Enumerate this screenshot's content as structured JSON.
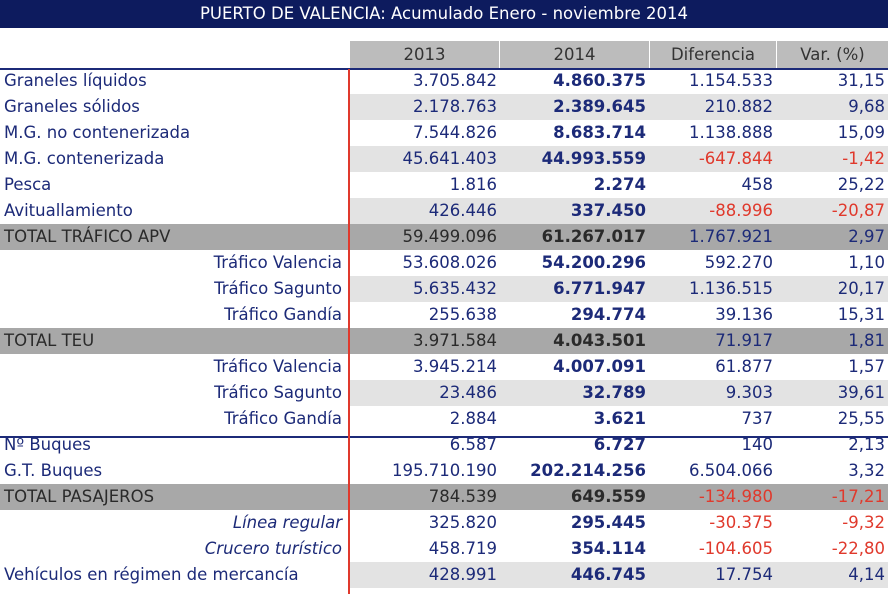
{
  "title": "PUERTO DE VALENCIA: Acumulado Enero - noviembre 2014",
  "headers": [
    "",
    "2013",
    "2014",
    "Diferencia",
    "Var. (%)"
  ],
  "rows": [
    {
      "label": "Graneles líquidos",
      "y2013": "3.705.842",
      "y2014": "4.860.375",
      "diff": "1.154.533",
      "var": "31,15",
      "style": "normal",
      "stripe": false,
      "neg": false
    },
    {
      "label": "Graneles sólidos",
      "y2013": "2.178.763",
      "y2014": "2.389.645",
      "diff": "210.882",
      "var": "9,68",
      "style": "normal",
      "stripe": true,
      "neg": false
    },
    {
      "label": "M.G. no contenerizada",
      "y2013": "7.544.826",
      "y2014": "8.683.714",
      "diff": "1.138.888",
      "var": "15,09",
      "style": "normal",
      "stripe": false,
      "neg": false
    },
    {
      "label": "M.G. contenerizada",
      "y2013": "45.641.403",
      "y2014": "44.993.559",
      "diff": "-647.844",
      "var": "-1,42",
      "style": "normal",
      "stripe": true,
      "neg": true
    },
    {
      "label": "Pesca",
      "y2013": "1.816",
      "y2014": "2.274",
      "diff": "458",
      "var": "25,22",
      "style": "normal",
      "stripe": false,
      "neg": false
    },
    {
      "label": "Avituallamiento",
      "y2013": "426.446",
      "y2014": "337.450",
      "diff": "-88.996",
      "var": "-20,87",
      "style": "normal",
      "stripe": true,
      "neg": true
    },
    {
      "label": "TOTAL TRÁFICO APV",
      "y2013": "59.499.096",
      "y2014": "61.267.017",
      "diff": "1.767.921",
      "var": "2,97",
      "style": "total",
      "stripe": false,
      "neg": false
    },
    {
      "label": "Tráfico Valencia",
      "y2013": "53.608.026",
      "y2014": "54.200.296",
      "diff": "592.270",
      "var": "1,10",
      "style": "indent",
      "stripe": false,
      "neg": false
    },
    {
      "label": "Tráfico Sagunto",
      "y2013": "5.635.432",
      "y2014": "6.771.947",
      "diff": "1.136.515",
      "var": "20,17",
      "style": "indent",
      "stripe": true,
      "neg": false
    },
    {
      "label": "Tráfico Gandía",
      "y2013": "255.638",
      "y2014": "294.774",
      "diff": "39.136",
      "var": "15,31",
      "style": "indent",
      "stripe": false,
      "neg": false
    },
    {
      "label": "TOTAL TEU",
      "y2013": "3.971.584",
      "y2014": "4.043.501",
      "diff": "71.917",
      "var": "1,81",
      "style": "total",
      "stripe": false,
      "neg": false
    },
    {
      "label": "Tráfico Valencia",
      "y2013": "3.945.214",
      "y2014": "4.007.091",
      "diff": "61.877",
      "var": "1,57",
      "style": "indent",
      "stripe": false,
      "neg": false
    },
    {
      "label": "Tráfico Sagunto",
      "y2013": "23.486",
      "y2014": "32.789",
      "diff": "9.303",
      "var": "39,61",
      "style": "indent",
      "stripe": true,
      "neg": false
    },
    {
      "label": "Tráfico Gandía",
      "y2013": "2.884",
      "y2014": "3.621",
      "diff": "737",
      "var": "25,55",
      "style": "indent",
      "stripe": false,
      "neg": false
    },
    {
      "label": "Nº Buques",
      "y2013": "6.587",
      "y2014": "6.727",
      "diff": "140",
      "var": "2,13",
      "style": "normal",
      "stripe": false,
      "neg": false
    },
    {
      "label": "G.T. Buques",
      "y2013": "195.710.190",
      "y2014": "202.214.256",
      "diff": "6.504.066",
      "var": "3,32",
      "style": "normal",
      "stripe": false,
      "neg": false
    },
    {
      "label": "TOTAL PASAJEROS",
      "y2013": "784.539",
      "y2014": "649.559",
      "diff": "-134.980",
      "var": "-17,21",
      "style": "total",
      "stripe": false,
      "neg": true
    },
    {
      "label": "Línea regular",
      "y2013": "325.820",
      "y2014": "295.445",
      "diff": "-30.375",
      "var": "-9,32",
      "style": "indent-italic",
      "stripe": false,
      "neg": true
    },
    {
      "label": "Crucero turístico",
      "y2013": "458.719",
      "y2014": "354.114",
      "diff": "-104.605",
      "var": "-22,80",
      "style": "indent-italic",
      "stripe": false,
      "neg": true
    },
    {
      "label": "Vehículos en régimen de mercancía",
      "y2013": "428.991",
      "y2014": "446.745",
      "diff": "17.754",
      "var": "4,14",
      "style": "normal",
      "stripe": true,
      "neg": false
    }
  ],
  "colors": {
    "title_bg": "#0d1b5e",
    "text": "#1c2a78",
    "negative": "#e0392c",
    "total_bg": "#a8a8a8",
    "stripe_bg": "#e3e3e3",
    "header_bg": "#bcbcbc"
  }
}
